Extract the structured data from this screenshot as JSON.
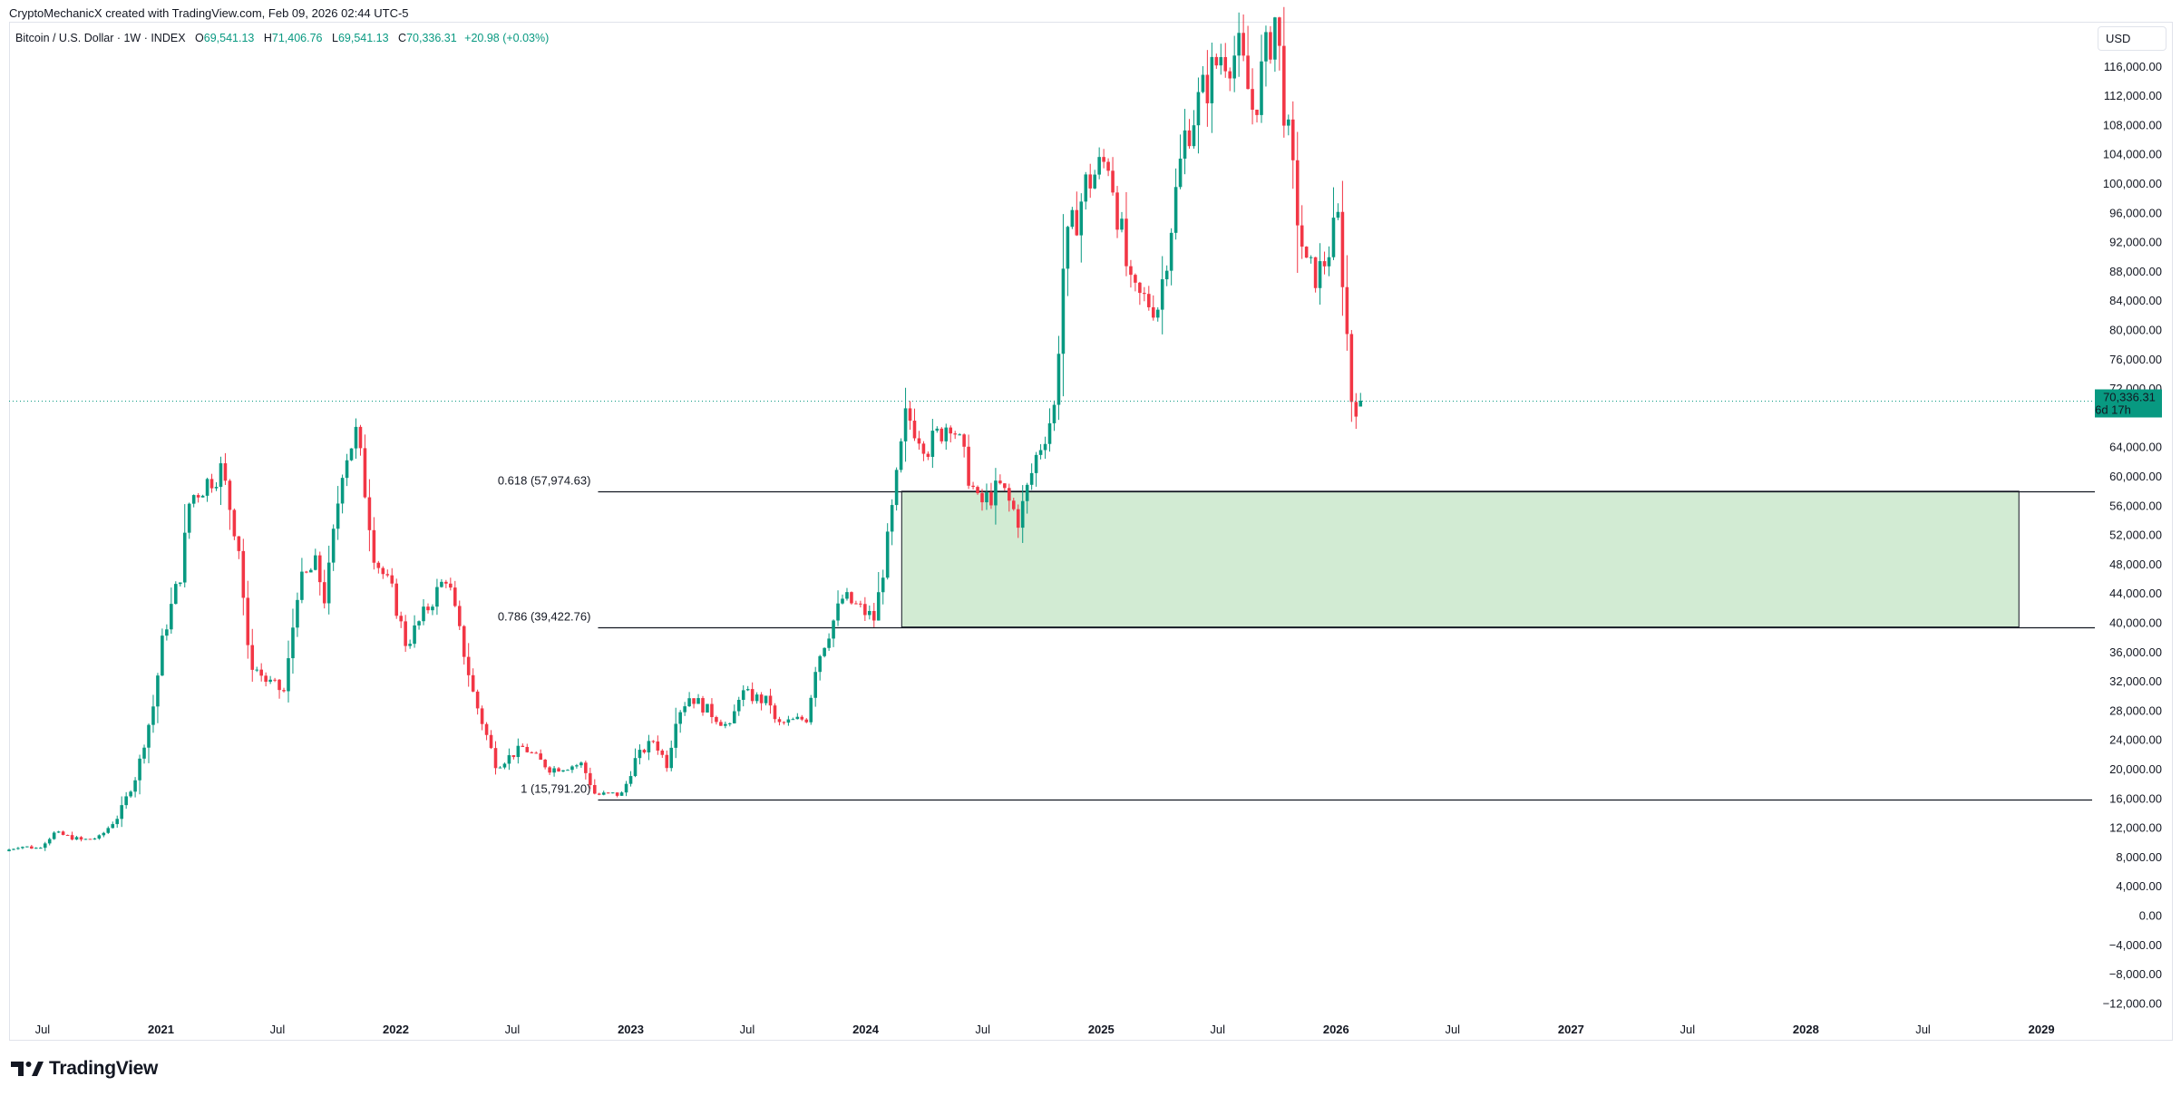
{
  "header": {
    "attribution": "CryptoMechanicX created with TradingView.com, Feb 09, 2026 02:44 UTC-5"
  },
  "legend": {
    "symbol": "Bitcoin / U.S. Dollar · 1W · INDEX",
    "open_label": "O",
    "open_value": "69,541.13",
    "high_label": "H",
    "high_value": "71,406.76",
    "low_label": "L",
    "low_value": "69,541.13",
    "close_label": "C",
    "close_value": "70,336.31",
    "change": "+20.98 (+0.03%)"
  },
  "currency": "USD",
  "brand": "TradingView",
  "colors": {
    "up": "#089981",
    "down": "#f23645",
    "zone_fill": "#d2ebd3",
    "last_price_bg": "#089981"
  },
  "chart_data": {
    "type": "candlestick",
    "title": "Bitcoin / U.S. Dollar · 1W · INDEX",
    "y_axis": {
      "currency": "USD",
      "ylim": [
        -12000,
        118000
      ],
      "ticks": [
        "116,000.00",
        "112,000.00",
        "108,000.00",
        "104,000.00",
        "100,000.00",
        "96,000.00",
        "92,000.00",
        "88,000.00",
        "84,000.00",
        "80,000.00",
        "76,000.00",
        "72,000.00",
        "64,000.00",
        "60,000.00",
        "56,000.00",
        "52,000.00",
        "48,000.00",
        "44,000.00",
        "40,000.00",
        "36,000.00",
        "32,000.00",
        "28,000.00",
        "24,000.00",
        "20,000.00",
        "16,000.00",
        "12,000.00",
        "8,000.00",
        "4,000.00",
        "0.00",
        "−4,000.00",
        "−8,000.00",
        "−12,000.00"
      ],
      "tick_values": [
        116000,
        112000,
        108000,
        104000,
        100000,
        96000,
        92000,
        88000,
        84000,
        80000,
        76000,
        72000,
        64000,
        60000,
        56000,
        52000,
        48000,
        44000,
        40000,
        36000,
        32000,
        28000,
        24000,
        20000,
        16000,
        12000,
        8000,
        4000,
        0,
        -4000,
        -8000,
        -12000
      ]
    },
    "x_axis": {
      "range": [
        "2020-05-10",
        "2029-03-25"
      ],
      "ticks": [
        {
          "label": "Jul",
          "date": "2020-07-01",
          "year": false
        },
        {
          "label": "2021",
          "date": "2021-01-01",
          "year": true
        },
        {
          "label": "Jul",
          "date": "2021-07-01",
          "year": false
        },
        {
          "label": "2022",
          "date": "2022-01-01",
          "year": true
        },
        {
          "label": "Jul",
          "date": "2022-07-01",
          "year": false
        },
        {
          "label": "2023",
          "date": "2023-01-01",
          "year": true
        },
        {
          "label": "Jul",
          "date": "2023-07-01",
          "year": false
        },
        {
          "label": "2024",
          "date": "2024-01-01",
          "year": true
        },
        {
          "label": "Jul",
          "date": "2024-07-01",
          "year": false
        },
        {
          "label": "2025",
          "date": "2025-01-01",
          "year": true
        },
        {
          "label": "Jul",
          "date": "2025-07-01",
          "year": false
        },
        {
          "label": "2026",
          "date": "2026-01-01",
          "year": true
        },
        {
          "label": "Jul",
          "date": "2026-07-01",
          "year": false
        },
        {
          "label": "2027",
          "date": "2027-01-01",
          "year": true
        },
        {
          "label": "Jul",
          "date": "2027-07-01",
          "year": false
        },
        {
          "label": "2028",
          "date": "2028-01-01",
          "year": true
        },
        {
          "label": "Jul",
          "date": "2028-07-01",
          "year": false
        },
        {
          "label": "2029",
          "date": "2029-01-01",
          "year": true
        }
      ]
    },
    "price_path": [
      [
        "2020-05-10",
        8800
      ],
      [
        "2020-06-01",
        9500
      ],
      [
        "2020-07-01",
        9200
      ],
      [
        "2020-07-27",
        11300
      ],
      [
        "2020-09-07",
        10300
      ],
      [
        "2020-10-05",
        10700
      ],
      [
        "2020-11-02",
        13500
      ],
      [
        "2020-11-30",
        19000
      ],
      [
        "2020-12-28",
        29000
      ],
      [
        "2021-01-11",
        38000
      ],
      [
        "2021-02-08",
        47000
      ],
      [
        "2021-02-22",
        57000
      ],
      [
        "2021-04-12",
        61000
      ],
      [
        "2021-05-10",
        50000
      ],
      [
        "2021-05-24",
        35000
      ],
      [
        "2021-06-21",
        32000
      ],
      [
        "2021-07-19",
        30500
      ],
      [
        "2021-08-09",
        45000
      ],
      [
        "2021-09-06",
        48000
      ],
      [
        "2021-09-20",
        43000
      ],
      [
        "2021-10-18",
        62000
      ],
      [
        "2021-11-08",
        66000
      ],
      [
        "2021-12-06",
        49000
      ],
      [
        "2022-01-03",
        44000
      ],
      [
        "2022-01-24",
        37000
      ],
      [
        "2022-03-28",
        46500
      ],
      [
        "2022-05-09",
        30000
      ],
      [
        "2022-06-13",
        20500
      ],
      [
        "2022-07-25",
        23000
      ],
      [
        "2022-09-05",
        20000
      ],
      [
        "2022-10-24",
        20700
      ],
      [
        "2022-11-14",
        16500
      ],
      [
        "2022-12-26",
        16600
      ],
      [
        "2023-01-16",
        21500
      ],
      [
        "2023-02-13",
        24000
      ],
      [
        "2023-03-06",
        20500
      ],
      [
        "2023-03-20",
        27500
      ],
      [
        "2023-04-10",
        30000
      ],
      [
        "2023-06-12",
        25500
      ],
      [
        "2023-06-26",
        30500
      ],
      [
        "2023-08-14",
        29000
      ],
      [
        "2023-08-21",
        26000
      ],
      [
        "2023-10-09",
        27000
      ],
      [
        "2023-10-23",
        34500
      ],
      [
        "2023-12-04",
        43500
      ],
      [
        "2024-01-22",
        40500
      ],
      [
        "2024-02-12",
        51500
      ],
      [
        "2024-03-11",
        68500
      ],
      [
        "2024-04-15",
        64000
      ],
      [
        "2024-05-20",
        68000
      ],
      [
        "2024-07-01",
        56000
      ],
      [
        "2024-08-05",
        58500
      ],
      [
        "2024-09-02",
        54000
      ],
      [
        "2024-09-30",
        63000
      ],
      [
        "2024-10-28",
        69500
      ],
      [
        "2024-11-11",
        90000
      ],
      [
        "2024-12-16",
        100000
      ],
      [
        "2025-01-20",
        103500
      ],
      [
        "2025-02-24",
        84500
      ],
      [
        "2025-04-07",
        83500
      ],
      [
        "2025-05-19",
        107000
      ],
      [
        "2025-07-14",
        118000
      ],
      [
        "2025-08-11",
        117500
      ],
      [
        "2025-09-01",
        110000
      ],
      [
        "2025-10-06",
        123000
      ],
      [
        "2025-10-20",
        110000
      ],
      [
        "2025-11-10",
        95000
      ],
      [
        "2025-11-24",
        87500
      ],
      [
        "2025-12-15",
        88000
      ],
      [
        "2026-01-12",
        95000
      ],
      [
        "2026-01-26",
        78000
      ],
      [
        "2026-02-02",
        69541.13
      ],
      [
        "2026-02-09",
        70336.31
      ]
    ],
    "last_candle": {
      "date": "2026-02-09",
      "open": 69541.13,
      "high": 71406.76,
      "low": 69541.13,
      "close": 70336.31
    },
    "last_price_label": "70,336.31",
    "countdown_label": "6d 17h",
    "fib_levels": [
      {
        "label": "0.618 (57,974.63)",
        "value": 57974.63
      },
      {
        "label": "0.786 (39,422.76)",
        "value": 39422.76
      },
      {
        "label": "1 (15,791.20)",
        "value": 15791.2
      }
    ],
    "fib_start_date": "2022-11-14",
    "zone": {
      "date_from": "2024-02-26",
      "date_to": "2028-11-27",
      "top": 57974.63,
      "bottom": 39422.76
    },
    "grid": false,
    "legend_position": "top-left"
  }
}
